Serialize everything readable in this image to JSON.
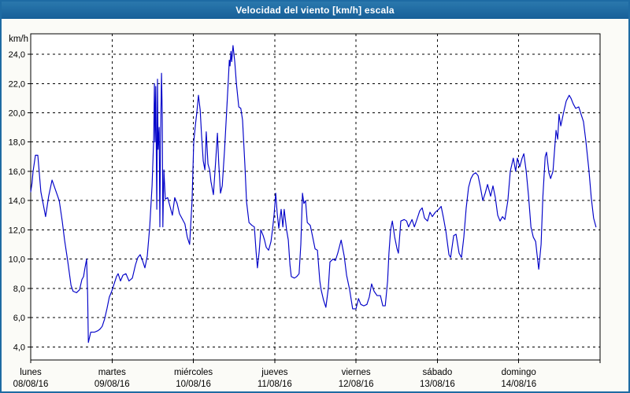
{
  "window": {
    "title": "Velocidad del viento [km/h] escala"
  },
  "colors": {
    "frame": "#1e6ba3",
    "title_bar_top": "#2a78ad",
    "title_bar_bottom": "#175f98",
    "title_text": "#ffffff",
    "page_bg": "#fbfbf7",
    "plot_bg": "#ffffff",
    "grid": "#000000",
    "axis_text": "#000000",
    "line": "#0000c8"
  },
  "chart_data": {
    "type": "line",
    "title": "Velocidad del viento [km/h] escala",
    "ylabel": "km/h",
    "xlabel": "",
    "grid": true,
    "legend": "none",
    "ylim": [
      3.1,
      25.4
    ],
    "xlim_hours": [
      0,
      168
    ],
    "y_ticks": [
      {
        "value": 24,
        "label": "24,0"
      },
      {
        "value": 22,
        "label": "22,0"
      },
      {
        "value": 20,
        "label": "20,0"
      },
      {
        "value": 18,
        "label": "18,0"
      },
      {
        "value": 16,
        "label": "16,0"
      },
      {
        "value": 14,
        "label": "14,0"
      },
      {
        "value": 12,
        "label": "12,0"
      },
      {
        "value": 10,
        "label": "10,0"
      },
      {
        "value": 8,
        "label": "8,0"
      },
      {
        "value": 6,
        "label": "6,0"
      },
      {
        "value": 4,
        "label": "4,0"
      }
    ],
    "x_days": [
      {
        "name": "lunes",
        "date": "08/08/16",
        "start_hour": 0
      },
      {
        "name": "martes",
        "date": "09/08/16",
        "start_hour": 24
      },
      {
        "name": "miércoles",
        "date": "10/08/16",
        "start_hour": 48
      },
      {
        "name": "jueves",
        "date": "11/08/16",
        "start_hour": 72
      },
      {
        "name": "viernes",
        "date": "12/08/16",
        "start_hour": 96
      },
      {
        "name": "sábado",
        "date": "13/08/16",
        "start_hour": 120
      },
      {
        "name": "domingo",
        "date": "14/08/16",
        "start_hour": 144
      }
    ],
    "series": [
      {
        "name": "Velocidad del viento",
        "color": "#0000c8",
        "points": [
          [
            0,
            14.6
          ],
          [
            0.4,
            15.2
          ],
          [
            0.7,
            16
          ],
          [
            1.4,
            17.1
          ],
          [
            2.1,
            17.1
          ],
          [
            3,
            14.6
          ],
          [
            4.4,
            12.9
          ],
          [
            5.3,
            14.3
          ],
          [
            6.3,
            15.4
          ],
          [
            7.2,
            14.8
          ],
          [
            8.4,
            14
          ],
          [
            9.3,
            12.6
          ],
          [
            10,
            11.3
          ],
          [
            10.9,
            9.9
          ],
          [
            11.9,
            8.2
          ],
          [
            12.5,
            7.8
          ],
          [
            13.5,
            7.7
          ],
          [
            14.4,
            7.9
          ],
          [
            15.1,
            8.6
          ],
          [
            15.6,
            8.8
          ],
          [
            16,
            9.4
          ],
          [
            16.5,
            10
          ],
          [
            16.8,
            7.5
          ],
          [
            17,
            4.3
          ],
          [
            17.7,
            5
          ],
          [
            18.8,
            5
          ],
          [
            19.8,
            5.1
          ],
          [
            20.4,
            5.2
          ],
          [
            21.1,
            5.4
          ],
          [
            21.8,
            5.9
          ],
          [
            22.5,
            6.6
          ],
          [
            23.2,
            7.4
          ],
          [
            23.9,
            7.8
          ],
          [
            24.6,
            8.3
          ],
          [
            25.3,
            8.8
          ],
          [
            25.8,
            9
          ],
          [
            26.5,
            8.5
          ],
          [
            27.2,
            8.9
          ],
          [
            28.1,
            9
          ],
          [
            29,
            8.5
          ],
          [
            30,
            8.7
          ],
          [
            30.9,
            9.6
          ],
          [
            31.6,
            10.1
          ],
          [
            32.3,
            10.3
          ],
          [
            33,
            9.9
          ],
          [
            33.7,
            9.4
          ],
          [
            34.4,
            10.2
          ],
          [
            35.1,
            12.2
          ],
          [
            35.8,
            15
          ],
          [
            36.3,
            18.3
          ],
          [
            36.5,
            22
          ],
          [
            36.7,
            18
          ],
          [
            36.9,
            21.8
          ],
          [
            37.2,
            13.4
          ],
          [
            37.4,
            22.3
          ],
          [
            37.6,
            17.5
          ],
          [
            37.9,
            19
          ],
          [
            38.1,
            12.2
          ],
          [
            38.3,
            18
          ],
          [
            38.6,
            22.7
          ],
          [
            38.8,
            20
          ],
          [
            39,
            12.2
          ],
          [
            39.3,
            16.1
          ],
          [
            39.7,
            14.1
          ],
          [
            40.4,
            14.2
          ],
          [
            41.1,
            13.6
          ],
          [
            41.8,
            13
          ],
          [
            42.5,
            14.2
          ],
          [
            43.2,
            13.8
          ],
          [
            43.9,
            13.1
          ],
          [
            44.6,
            12.8
          ],
          [
            45.5,
            12.4
          ],
          [
            46.2,
            11.5
          ],
          [
            46.9,
            11
          ],
          [
            47.6,
            14
          ],
          [
            48.1,
            18
          ],
          [
            48.6,
            19.2
          ],
          [
            49,
            20
          ],
          [
            49.5,
            21.2
          ],
          [
            50,
            20.2
          ],
          [
            50.4,
            18.5
          ],
          [
            50.9,
            16.7
          ],
          [
            51.4,
            16.1
          ],
          [
            51.8,
            18.7
          ],
          [
            52.3,
            16.5
          ],
          [
            52.8,
            16.1
          ],
          [
            53.2,
            15.3
          ],
          [
            53.9,
            14.4
          ],
          [
            54.6,
            16.8
          ],
          [
            55.1,
            18.6
          ],
          [
            55.5,
            16.5
          ],
          [
            56,
            14.5
          ],
          [
            56.5,
            15
          ],
          [
            57.2,
            17.5
          ],
          [
            57.9,
            20.5
          ],
          [
            58.3,
            22.2
          ],
          [
            58.6,
            23.6
          ],
          [
            58.8,
            23.2
          ],
          [
            59.1,
            24.2
          ],
          [
            59.3,
            23.5
          ],
          [
            59.7,
            24.6
          ],
          [
            60.2,
            23.5
          ],
          [
            60.7,
            22
          ],
          [
            61.4,
            20.4
          ],
          [
            62,
            20.3
          ],
          [
            62.5,
            19.5
          ],
          [
            63.2,
            16.4
          ],
          [
            63.7,
            13.9
          ],
          [
            64.4,
            12.5
          ],
          [
            65.3,
            12.3
          ],
          [
            66,
            12.2
          ],
          [
            66.5,
            10.5
          ],
          [
            66.9,
            9.4
          ],
          [
            67.4,
            10.5
          ],
          [
            67.9,
            12
          ],
          [
            68.6,
            11.6
          ],
          [
            69,
            11.3
          ],
          [
            69.5,
            10.8
          ],
          [
            70.2,
            10.6
          ],
          [
            70.9,
            11.2
          ],
          [
            71.3,
            11.9
          ],
          [
            71.8,
            13
          ],
          [
            72.3,
            14.5
          ],
          [
            72.7,
            13.2
          ],
          [
            73.2,
            12.1
          ],
          [
            73.9,
            13.4
          ],
          [
            74.4,
            12.2
          ],
          [
            74.8,
            13.4
          ],
          [
            75.5,
            12
          ],
          [
            76,
            11.3
          ],
          [
            76.5,
            9.6
          ],
          [
            76.9,
            8.8
          ],
          [
            77.8,
            8.7
          ],
          [
            78.5,
            8.8
          ],
          [
            79.2,
            9
          ],
          [
            79.7,
            11
          ],
          [
            80.2,
            14.5
          ],
          [
            80.6,
            13.8
          ],
          [
            81.1,
            14
          ],
          [
            81.6,
            12.5
          ],
          [
            82.5,
            12.3
          ],
          [
            83.2,
            11.5
          ],
          [
            83.9,
            10.7
          ],
          [
            84.6,
            10.6
          ],
          [
            85.3,
            8.5
          ],
          [
            85.7,
            7.9
          ],
          [
            86.4,
            7.2
          ],
          [
            87.1,
            6.7
          ],
          [
            87.8,
            8
          ],
          [
            88.3,
            9.8
          ],
          [
            89.2,
            10
          ],
          [
            89.9,
            9.9
          ],
          [
            90.6,
            10.4
          ],
          [
            91.6,
            11.3
          ],
          [
            92.5,
            10.2
          ],
          [
            93.2,
            8.9
          ],
          [
            94.1,
            7.9
          ],
          [
            95,
            6.6
          ],
          [
            96,
            6.6
          ],
          [
            96.7,
            7.3
          ],
          [
            97.4,
            6.9
          ],
          [
            98.3,
            6.8
          ],
          [
            99.2,
            6.9
          ],
          [
            99.9,
            7.4
          ],
          [
            100.6,
            8.3
          ],
          [
            101.3,
            7.8
          ],
          [
            102.2,
            7.5
          ],
          [
            103.2,
            7.5
          ],
          [
            103.9,
            6.8
          ],
          [
            104.6,
            6.8
          ],
          [
            105.3,
            8.5
          ],
          [
            105.7,
            10.4
          ],
          [
            106.2,
            12
          ],
          [
            106.7,
            12.6
          ],
          [
            107.4,
            11.5
          ],
          [
            108.1,
            10.7
          ],
          [
            108.5,
            10.4
          ],
          [
            109.2,
            12.6
          ],
          [
            110.2,
            12.7
          ],
          [
            110.9,
            12.6
          ],
          [
            111.5,
            12.2
          ],
          [
            112.5,
            12.7
          ],
          [
            113.2,
            12.2
          ],
          [
            114.1,
            12.8
          ],
          [
            114.8,
            13.3
          ],
          [
            115.5,
            13.5
          ],
          [
            116.2,
            12.8
          ],
          [
            117.1,
            12.6
          ],
          [
            117.8,
            13.2
          ],
          [
            118.5,
            12.9
          ],
          [
            119.4,
            13.2
          ],
          [
            120.4,
            13.4
          ],
          [
            121.1,
            13.6
          ],
          [
            121.8,
            12.8
          ],
          [
            122.5,
            11.9
          ],
          [
            123.4,
            10.3
          ],
          [
            123.9,
            10.1
          ],
          [
            124.8,
            11.6
          ],
          [
            125.5,
            11.7
          ],
          [
            126.4,
            10.4
          ],
          [
            127.1,
            10.1
          ],
          [
            127.8,
            11.5
          ],
          [
            128.5,
            13.5
          ],
          [
            129.2,
            14.9
          ],
          [
            129.9,
            15.5
          ],
          [
            130.6,
            15.8
          ],
          [
            131.3,
            15.9
          ],
          [
            132,
            15.7
          ],
          [
            132.7,
            14.9
          ],
          [
            133.4,
            14
          ],
          [
            134.1,
            14.5
          ],
          [
            134.8,
            15.1
          ],
          [
            135.7,
            14.3
          ],
          [
            136.4,
            15
          ],
          [
            137.1,
            14.2
          ],
          [
            137.8,
            13
          ],
          [
            138.5,
            12.6
          ],
          [
            139.2,
            12.9
          ],
          [
            139.9,
            12.7
          ],
          [
            140.8,
            14
          ],
          [
            141.5,
            16
          ],
          [
            142.4,
            16.9
          ],
          [
            143.1,
            16
          ],
          [
            143.6,
            16.9
          ],
          [
            144.3,
            16.3
          ],
          [
            145,
            16.9
          ],
          [
            145.5,
            17.2
          ],
          [
            146.2,
            16
          ],
          [
            146.9,
            14.3
          ],
          [
            147.6,
            12.2
          ],
          [
            148.3,
            11.5
          ],
          [
            149,
            11.2
          ],
          [
            149.4,
            10.3
          ],
          [
            149.9,
            9.3
          ],
          [
            150.6,
            11
          ],
          [
            151.1,
            14.2
          ],
          [
            151.8,
            17
          ],
          [
            152.2,
            17.3
          ],
          [
            152.9,
            15.9
          ],
          [
            153.4,
            15.5
          ],
          [
            154.1,
            16
          ],
          [
            155,
            18.8
          ],
          [
            155.5,
            18.2
          ],
          [
            155.9,
            19.9
          ],
          [
            156.4,
            19.1
          ],
          [
            157.3,
            20.1
          ],
          [
            158,
            20.8
          ],
          [
            158.9,
            21.2
          ],
          [
            159.4,
            21
          ],
          [
            160.1,
            20.6
          ],
          [
            160.8,
            20.3
          ],
          [
            161.7,
            20.4
          ],
          [
            162.4,
            19.9
          ],
          [
            163.1,
            19.4
          ],
          [
            163.8,
            18.1
          ],
          [
            164.7,
            16.1
          ],
          [
            165.4,
            14.2
          ],
          [
            166.1,
            12.8
          ],
          [
            166.8,
            12.2
          ]
        ]
      }
    ]
  }
}
